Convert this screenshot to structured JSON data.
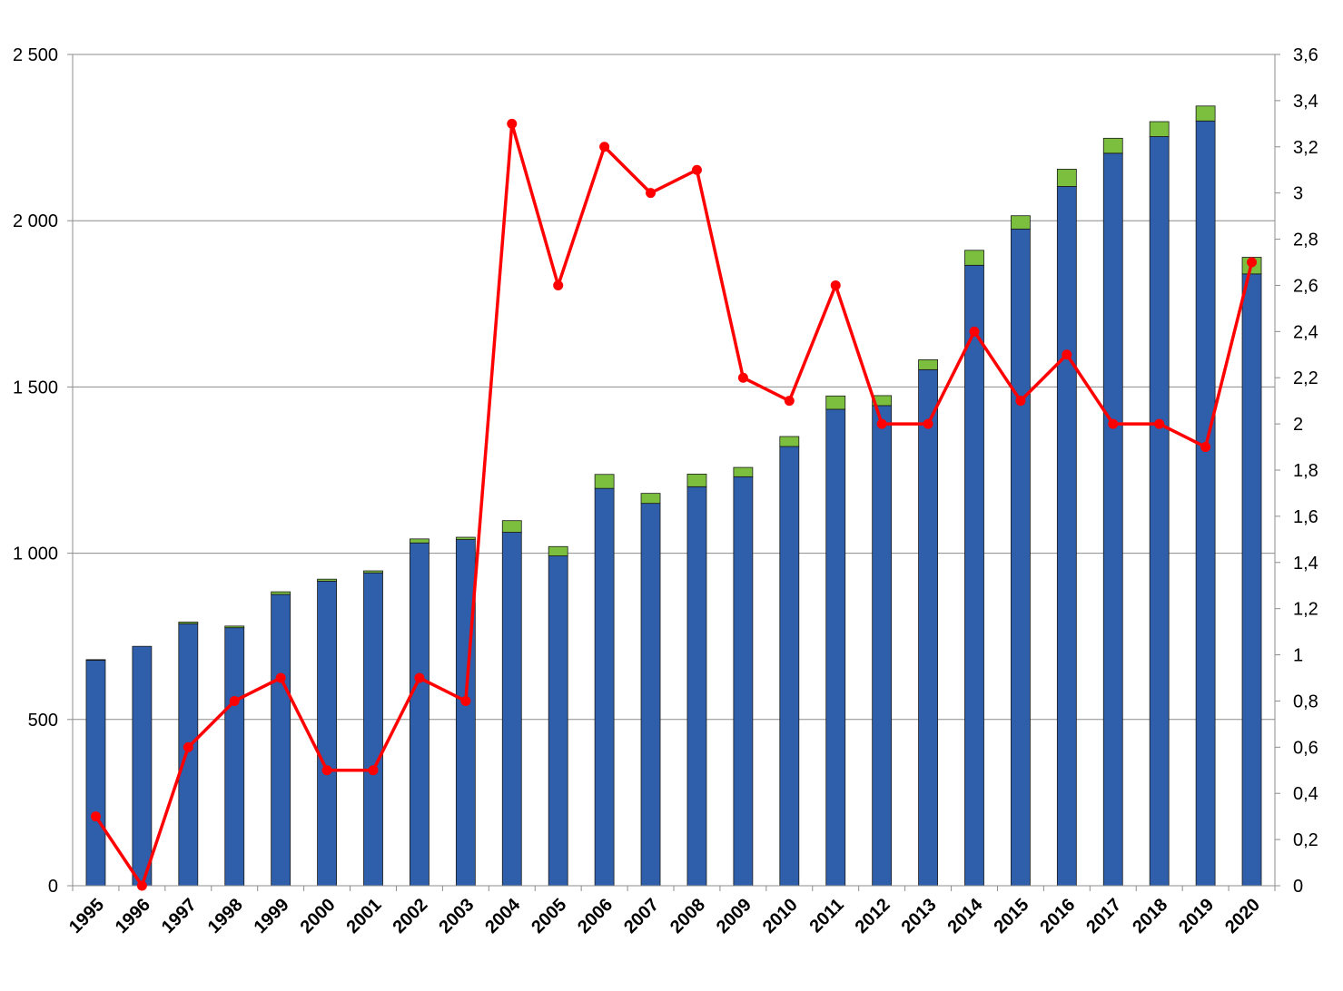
{
  "chart_data": {
    "type": "bar",
    "title": "",
    "xlabel": "",
    "ylabel": "",
    "y2label": "",
    "categories": [
      "1995",
      "1996",
      "1997",
      "1998",
      "1999",
      "2000",
      "2001",
      "2002",
      "2003",
      "2004",
      "2005",
      "2006",
      "2007",
      "2008",
      "2009",
      "2010",
      "2011",
      "2012",
      "2013",
      "2014",
      "2015",
      "2016",
      "2017",
      "2018",
      "2019",
      "2020"
    ],
    "ylim": [
      0,
      2500
    ],
    "y_ticks": [
      0,
      500,
      1000,
      1500,
      2000,
      2500
    ],
    "y_tick_labels": [
      "0",
      "500",
      "1 000",
      "1 500",
      "2 000",
      "2 500"
    ],
    "y2lim": [
      0,
      3.6
    ],
    "y2_ticks": [
      0,
      0.2,
      0.4,
      0.6,
      0.8,
      1,
      1.2,
      1.4,
      1.6,
      1.8,
      2,
      2.2,
      2.4,
      2.6,
      2.8,
      3,
      3.2,
      3.4,
      3.6
    ],
    "y2_tick_labels": [
      "0",
      "0,2",
      "0,4",
      "0,6",
      "0,8",
      "1",
      "1,2",
      "1,4",
      "1,6",
      "1,8",
      "2",
      "2,2",
      "2,4",
      "2,6",
      "2,8",
      "3",
      "3,2",
      "3,4",
      "3,6"
    ],
    "grid": "horizontal",
    "legend": "none",
    "series": [
      {
        "type": "bar-stacked",
        "color": "#2F5EAA",
        "axis": "left",
        "values": [
          678,
          720,
          788,
          776,
          876,
          916,
          941,
          1031,
          1041,
          1063,
          992,
          1195,
          1150,
          1200,
          1230,
          1321,
          1433,
          1444,
          1552,
          1866,
          1975,
          2103,
          2203,
          2253,
          2300,
          1840
        ]
      },
      {
        "type": "bar-stacked",
        "color": "#7CBF3F",
        "axis": "left",
        "values": [
          2,
          0,
          5,
          5,
          8,
          6,
          6,
          12,
          7,
          35,
          28,
          42,
          30,
          38,
          28,
          30,
          40,
          30,
          30,
          45,
          40,
          52,
          45,
          45,
          45,
          50
        ]
      },
      {
        "type": "line",
        "color": "#FF0000",
        "axis": "right",
        "values": [
          0.3,
          0.0,
          0.6,
          0.8,
          0.9,
          0.5,
          0.5,
          0.9,
          0.8,
          3.3,
          2.6,
          3.2,
          3.0,
          3.1,
          2.2,
          2.1,
          2.6,
          2.0,
          2.0,
          2.4,
          2.1,
          2.3,
          2.0,
          2.0,
          1.9,
          2.7
        ]
      }
    ]
  }
}
